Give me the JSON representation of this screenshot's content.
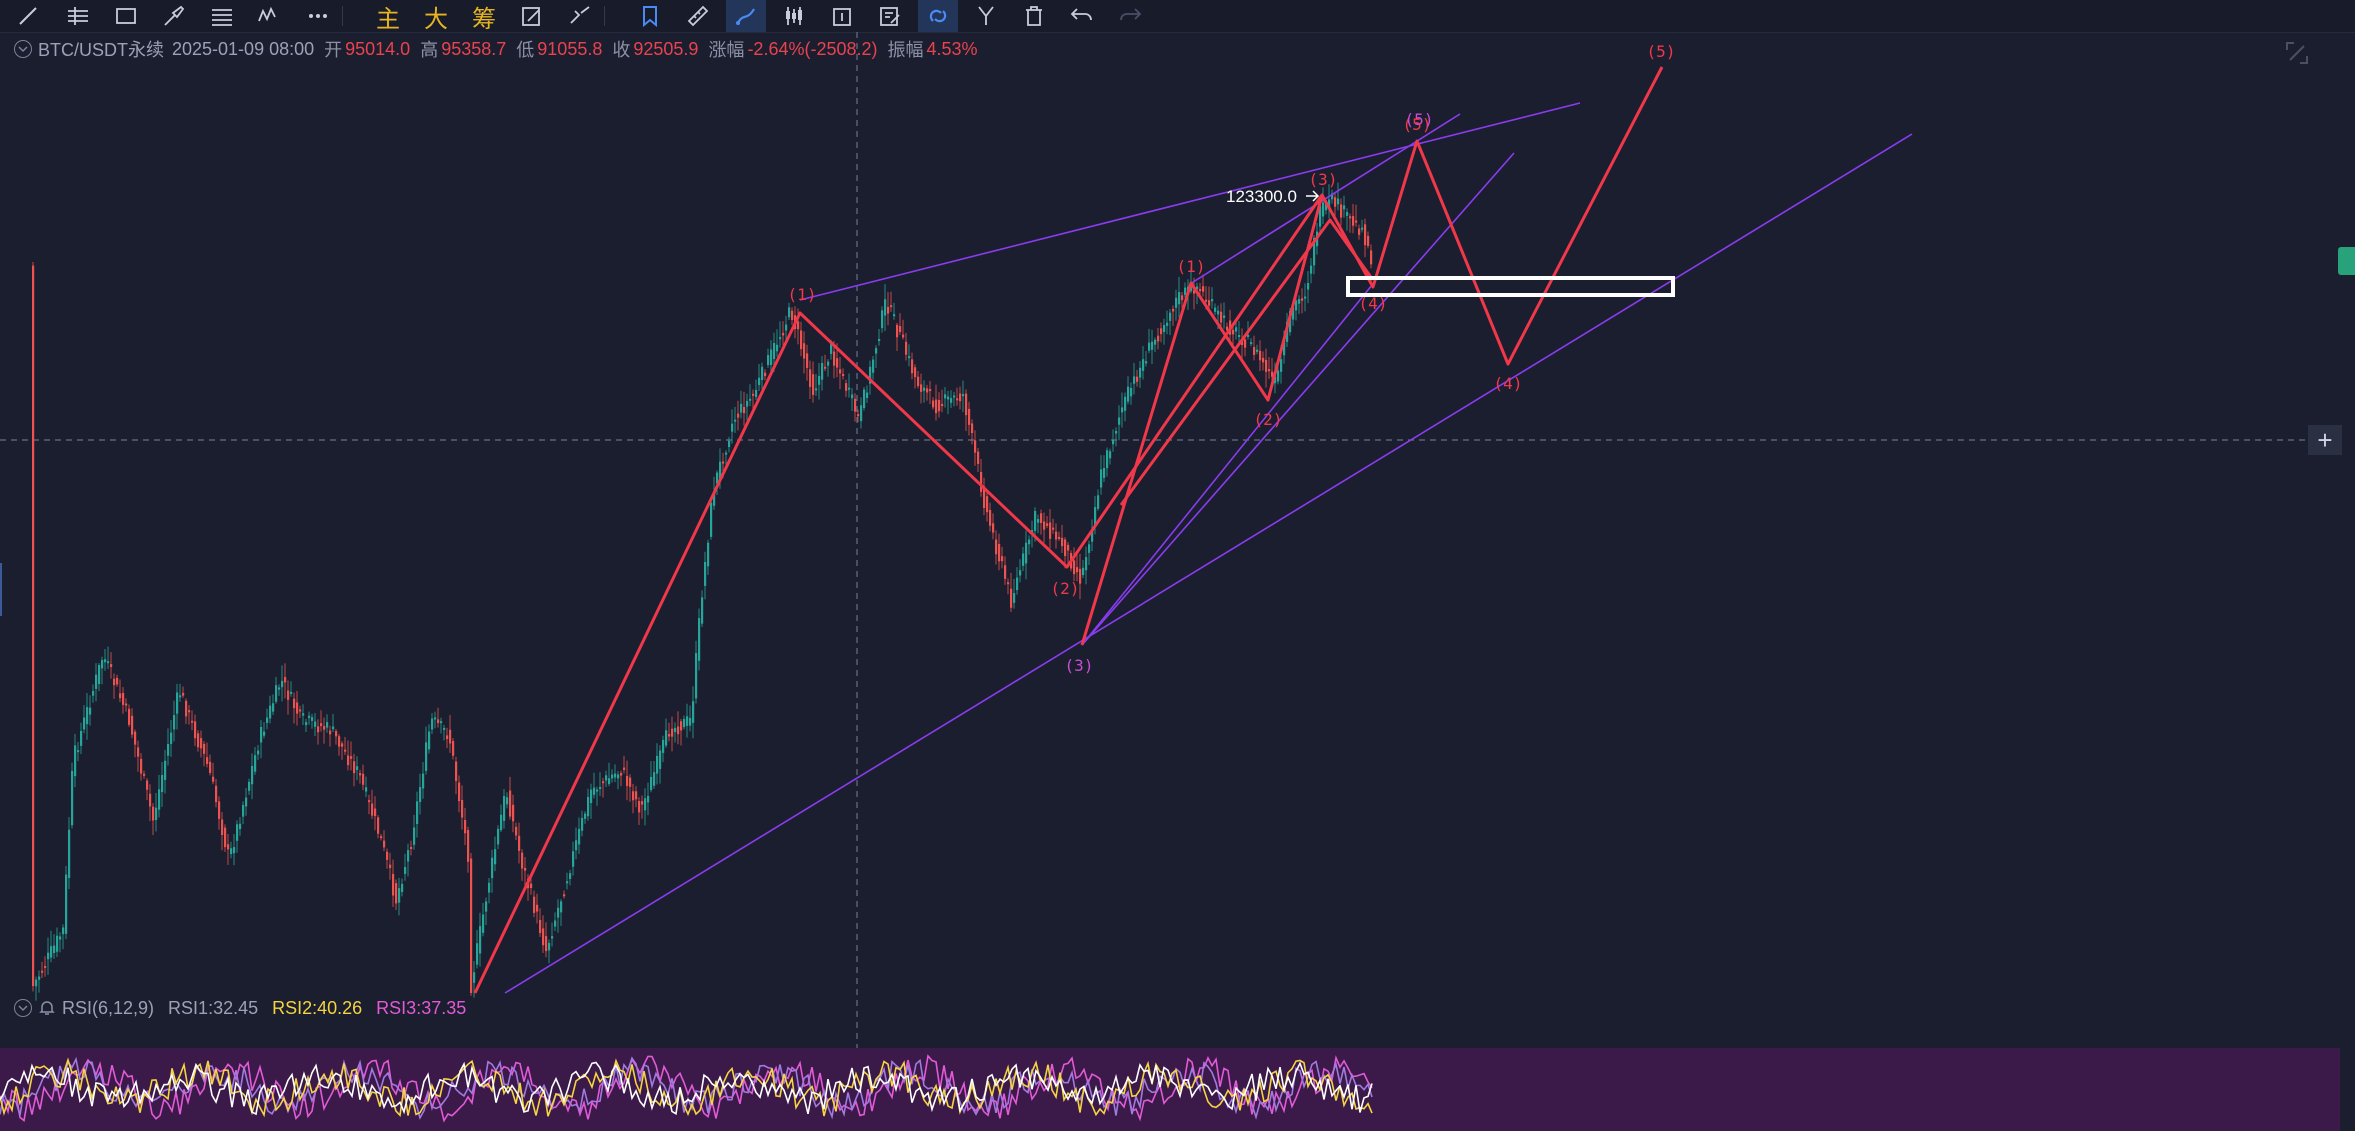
{
  "toolbar": {
    "items": [
      {
        "name": "line-tool-icon"
      },
      {
        "name": "horizontal-lines-icon"
      },
      {
        "name": "rectangle-tool-icon"
      },
      {
        "name": "brush-tool-icon"
      },
      {
        "name": "menu-lines-icon"
      },
      {
        "name": "wave-tool-icon"
      },
      {
        "name": "more-icon"
      },
      {
        "name": "main-chart-toggle",
        "label": "主"
      },
      {
        "name": "big-order-toggle",
        "label": "大"
      },
      {
        "name": "chip-distribution-toggle",
        "label": "筹"
      },
      {
        "name": "edit-drawing-icon"
      },
      {
        "name": "settings-drawing-icon"
      },
      {
        "name": "bookmark-icon"
      },
      {
        "name": "ruler-icon"
      },
      {
        "name": "magnet-icon"
      },
      {
        "name": "candles-icon"
      },
      {
        "name": "export-icon"
      },
      {
        "name": "note-icon"
      },
      {
        "name": "link-icon"
      },
      {
        "name": "fork-icon"
      },
      {
        "name": "trash-icon"
      },
      {
        "name": "undo-icon"
      },
      {
        "name": "redo-icon"
      }
    ]
  },
  "ohlc": {
    "symbol": "BTC/USDT永续",
    "datetime": "2025-01-09 08:00",
    "open_label": "开",
    "open": "95014.0",
    "high_label": "高",
    "high": "95358.7",
    "low_label": "低",
    "low": "91055.8",
    "close_label": "收",
    "close": "92505.9",
    "change_label": "涨幅",
    "change": "-2.64%(-2508.2)",
    "amplitude_label": "振幅",
    "amplitude": "4.53%"
  },
  "rsi": {
    "name": "RSI(6,12,9)",
    "rsi1": "RSI1:32.45",
    "rsi2": "RSI2:40.26",
    "rsi3": "RSI3:37.35"
  },
  "colors": {
    "background": "#1b1e2e",
    "up": "#26a69a",
    "down": "#ef5350",
    "wave": "#f0384a",
    "channel": "#8a3cf0",
    "rsi1": "#ffffff",
    "rsi2": "#f5d442",
    "rsi3": "#e25ad6",
    "rsi_band": "#3b1a4a"
  },
  "chart_data": {
    "type": "candlestick",
    "symbol": "BTC/USDT永续",
    "price_marker": "123300.0",
    "wave_labels": {
      "main": [
        "(1)",
        "(2)",
        "(3)",
        "(4)",
        "(5)"
      ],
      "sub": [
        "(1)",
        "(2)",
        "(3)",
        "(4)",
        "(5)"
      ],
      "projection": [
        "(4)",
        "(5)"
      ]
    }
  }
}
